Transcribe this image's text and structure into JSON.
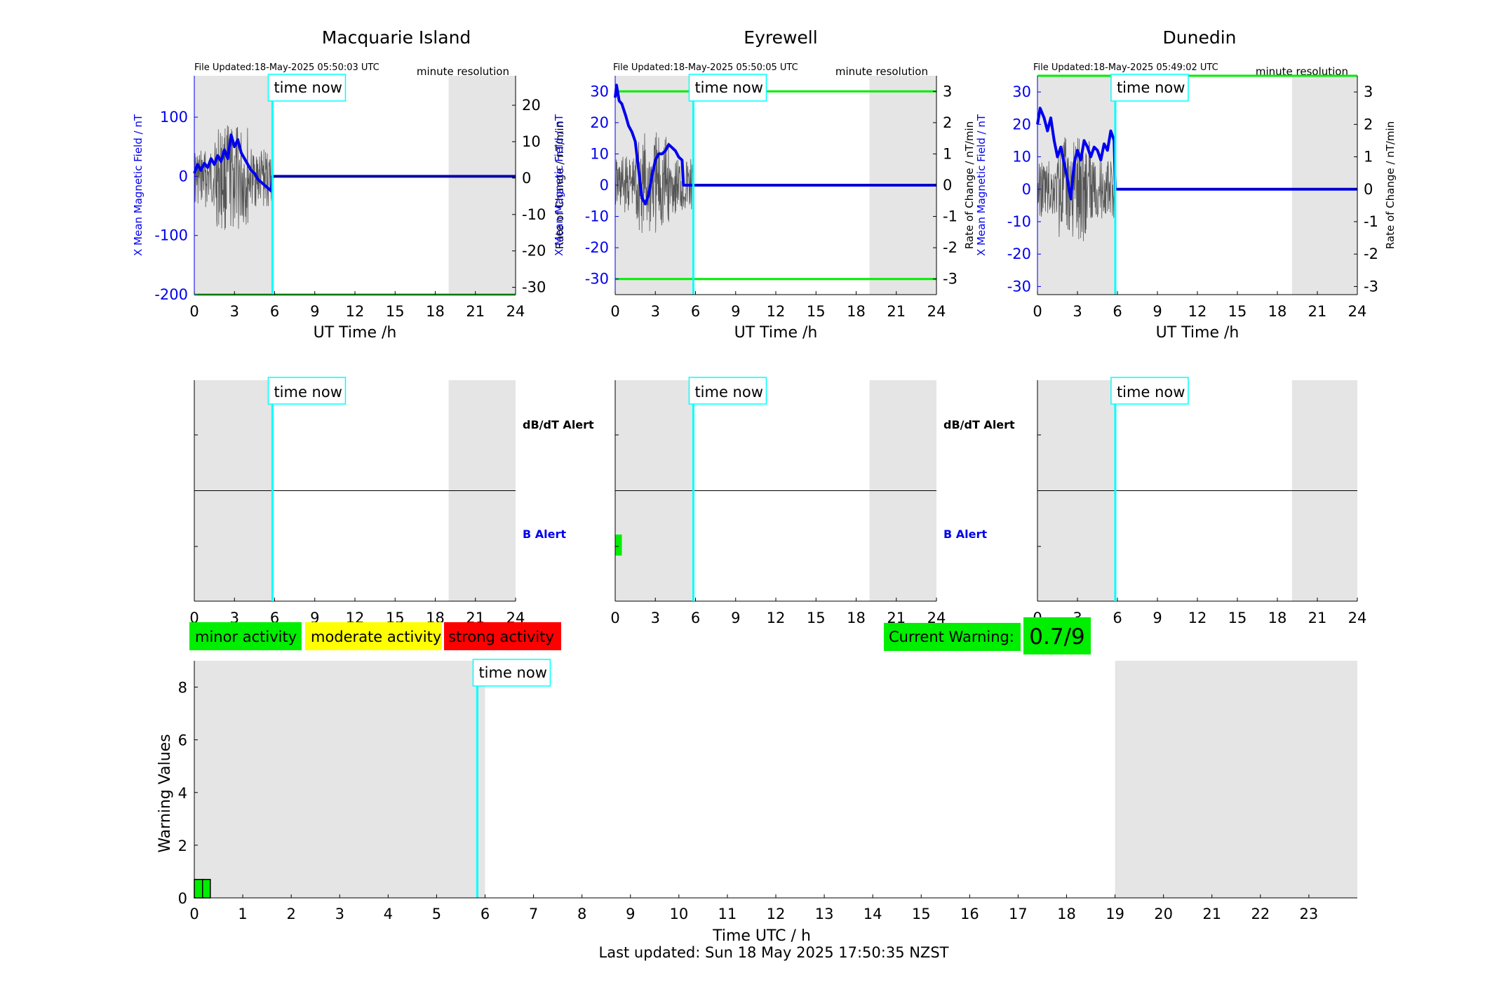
{
  "colors": {
    "field": "#0000ee",
    "rate": "#555555",
    "threshold": "#00ee00",
    "now_line": "#00ffff",
    "shade": "#e5e5e5",
    "minor": "#00ee00",
    "moderate": "#ffff00",
    "strong": "#ff0000"
  },
  "time_now_label": "time now",
  "time_now_hours": 5.84,
  "panels": [
    {
      "name": "Macquarie Island",
      "file_updated": "File Updated:18-May-2025 05:50:03 UTC",
      "resolution": "minute resolution",
      "ylabel_left": "X Mean Magnetic Field / nT",
      "ylabel_right": "Rate of Change / nT/min",
      "left_ticks": [
        "100",
        "0",
        "-100",
        "-200"
      ],
      "right_ticks": [
        "20",
        "10",
        "0",
        "-10",
        "-20",
        "-30"
      ],
      "alert_db": "dB/dT Alert",
      "alert_b": "B Alert"
    },
    {
      "name": "Eyrewell",
      "file_updated": "File Updated:18-May-2025 05:50:05 UTC",
      "resolution": "minute resolution",
      "ylabel_left": "X Mean Magnetic Field / nT",
      "ylabel_right": "Rate of Change / nT/min",
      "left_ticks": [
        "30",
        "20",
        "10",
        "0",
        "-10",
        "-20",
        "-30"
      ],
      "right_ticks": [
        "3",
        "2",
        "1",
        "0",
        "-1",
        "-2",
        "-3"
      ],
      "alert_db": "dB/dT Alert",
      "alert_b": "B Alert"
    },
    {
      "name": "Dunedin",
      "file_updated": "File Updated:18-May-2025 05:49:02 UTC",
      "resolution": "minute resolution",
      "ylabel_left": "X Mean Magnetic Field / nT",
      "ylabel_right": "Rate of Change / nT/min",
      "left_ticks": [
        "30",
        "20",
        "10",
        "0",
        "-10",
        "-20",
        "-30"
      ],
      "right_ticks": [
        "3",
        "2",
        "1",
        "0",
        "-1",
        "-2",
        "-3"
      ],
      "alert_db": "dB/dT Alert",
      "alert_b": "B Alert"
    }
  ],
  "legend": {
    "minor": "minor activity",
    "moderate": "moderate activity",
    "strong": "strong activity"
  },
  "current_warning": {
    "label": "Current Warning:",
    "value": "0.7/9"
  },
  "footer": "Last updated: Sun 18 May 2025 17:50:35 NZST",
  "chart_data": [
    {
      "type": "line",
      "station": "Macquarie Island",
      "title": "Macquarie Island",
      "xlabel": "UT Time /h",
      "xlim": [
        0,
        24
      ],
      "x_ticks": [
        0,
        3,
        6,
        9,
        12,
        15,
        18,
        21,
        24
      ],
      "ylim_left": [
        -200,
        170
      ],
      "ylim_right": [
        -32,
        28.1
      ],
      "thresholds_left": [
        -200
      ],
      "night_shade_hours": [
        [
          0,
          5.84
        ],
        [
          19,
          24
        ]
      ],
      "series": [
        {
          "axis": "left",
          "x": [
            0,
            0.25,
            0.5,
            0.75,
            1,
            1.25,
            1.5,
            1.75,
            2,
            2.25,
            2.5,
            2.75,
            3,
            3.25,
            3.5,
            3.75,
            4,
            4.25,
            4.5,
            4.75,
            5,
            5.25,
            5.5,
            5.75,
            5.84,
            6,
            9,
            12,
            15,
            18,
            21,
            24
          ],
          "y": [
            5,
            20,
            10,
            22,
            15,
            30,
            20,
            35,
            25,
            45,
            30,
            70,
            50,
            62,
            40,
            30,
            20,
            10,
            5,
            -5,
            -10,
            -15,
            -20,
            -25,
            0,
            0,
            0,
            0,
            0,
            0,
            0,
            0
          ]
        }
      ]
    },
    {
      "type": "line",
      "station": "Eyrewell",
      "title": "Eyrewell",
      "xlabel": "UT Time /h",
      "xlim": [
        0,
        24
      ],
      "x_ticks": [
        0,
        3,
        6,
        9,
        12,
        15,
        18,
        21,
        24
      ],
      "ylim_left": [
        -35,
        35
      ],
      "ylim_right": [
        -3.5,
        3.5
      ],
      "thresholds_left": [
        30,
        -30
      ],
      "night_shade_hours": [
        [
          0,
          5.84
        ],
        [
          19,
          24
        ]
      ],
      "series": [
        {
          "axis": "left",
          "x": [
            0,
            0.1,
            0.3,
            0.5,
            0.8,
            1,
            1.25,
            1.5,
            1.75,
            2,
            2.25,
            2.5,
            2.75,
            3,
            3.25,
            3.5,
            3.75,
            4,
            4.25,
            4.5,
            4.75,
            5,
            5.1,
            5.84,
            6,
            9,
            12,
            15,
            18,
            21,
            24
          ],
          "y": [
            28,
            32,
            27,
            26,
            22,
            19,
            17,
            14,
            5,
            -4,
            -6,
            -3,
            3,
            8,
            10,
            10,
            11,
            13,
            12,
            11,
            9,
            8,
            0,
            0,
            0,
            0,
            0,
            0,
            0,
            0,
            0
          ]
        }
      ]
    },
    {
      "type": "line",
      "station": "Dunedin",
      "title": "Dunedin",
      "xlabel": "UT Time /h",
      "xlim": [
        0,
        24
      ],
      "x_ticks": [
        0,
        3,
        6,
        9,
        12,
        15,
        18,
        21,
        24
      ],
      "ylim_left": [
        -32.5,
        35
      ],
      "ylim_right": [
        -3.25,
        3.5
      ],
      "thresholds_left": [
        35
      ],
      "night_shade_hours": [
        [
          0,
          5.84
        ],
        [
          19.1,
          24
        ]
      ],
      "series": [
        {
          "axis": "left",
          "x": [
            0,
            0.2,
            0.5,
            0.75,
            1,
            1.25,
            1.5,
            1.75,
            2,
            2.25,
            2.5,
            2.75,
            3,
            3.25,
            3.5,
            3.75,
            4,
            4.25,
            4.5,
            4.75,
            5,
            5.25,
            5.5,
            5.75,
            5.84,
            6,
            9,
            12,
            15,
            18,
            21,
            24
          ],
          "y": [
            20,
            25,
            22,
            18,
            22,
            15,
            10,
            13,
            8,
            3,
            -3,
            8,
            12,
            9,
            15,
            13,
            10,
            13,
            12,
            9,
            14,
            12,
            18,
            15,
            0,
            0,
            0,
            0,
            0,
            0,
            0,
            0
          ]
        }
      ]
    },
    {
      "type": "bar",
      "title": "Warning Values",
      "xlabel": "Time UTC / h",
      "ylabel": "Warning Values",
      "xlim": [
        0,
        24
      ],
      "ylim": [
        0,
        9
      ],
      "x_ticks": [
        0,
        1,
        2,
        3,
        4,
        5,
        6,
        7,
        8,
        9,
        10,
        11,
        12,
        13,
        14,
        15,
        16,
        17,
        18,
        19,
        20,
        21,
        22,
        23
      ],
      "y_ticks": [
        0,
        2,
        4,
        6,
        8
      ],
      "bars": [
        {
          "x_start": 0,
          "x_end": 0.17,
          "value": 0.7
        },
        {
          "x_start": 0.17,
          "x_end": 0.33,
          "value": 0.7
        }
      ],
      "night_shade_hours": [
        [
          0,
          6
        ],
        [
          19,
          24
        ]
      ]
    }
  ]
}
